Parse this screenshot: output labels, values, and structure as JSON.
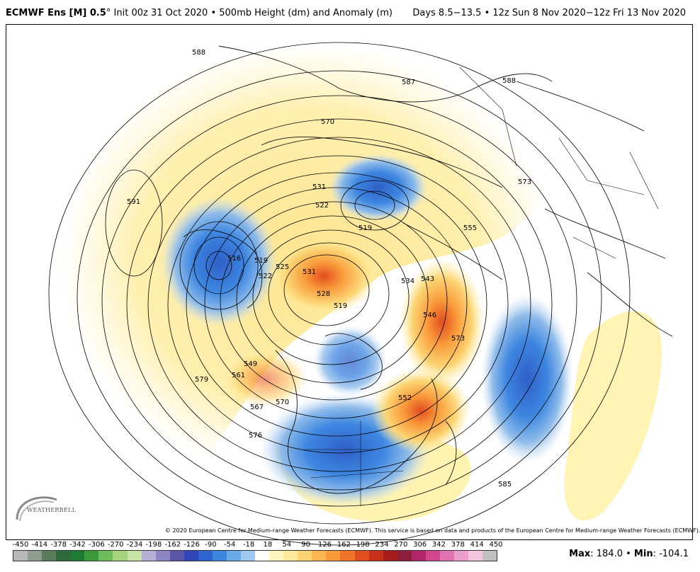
{
  "header": {
    "model": "ECMWF Ens [M] 0.5",
    "degree": "°",
    "init": "Init 00z 31 Oct 2020",
    "bullet": "•",
    "field": "500mb Height (dm) and Anomaly (m)",
    "period": "Days 8.5−13.5 • 12z Sun 8 Nov 2020−12z Fri 13 Nov 2020"
  },
  "footer": {
    "copyright": "© 2020 European Centre for Medium-range Weather Forecasts (ECMWF). This service is based on data and products of the European Centre for Medium-range Weather Forecasts (ECMWF).",
    "max_label": "Max",
    "max_value": ": 184.0",
    "sep": " • ",
    "min_label": "Min",
    "min_value": ": -104.1",
    "logo_text": "WEATHERBELL"
  },
  "colorbar": {
    "labels": [
      "-450",
      "-414",
      "-378",
      "-342",
      "-306",
      "-270",
      "-234",
      "-198",
      "-162",
      "-126",
      "-90",
      "-54",
      "-18",
      "18",
      "54",
      "90",
      "126",
      "162",
      "198",
      "234",
      "270",
      "306",
      "342",
      "378",
      "414",
      "450"
    ],
    "colors": [
      "#b8b8b8",
      "#8e9e8e",
      "#5c7a5c",
      "#2f6b3a",
      "#1f7a33",
      "#3a9a3a",
      "#6dbb5a",
      "#a5d47d",
      "#c8e3a5",
      "#b7b0d6",
      "#8d86c2",
      "#5b55a8",
      "#2f45b8",
      "#2f63d1",
      "#3d86e0",
      "#6aaae8",
      "#9fc8f0",
      "#ffffff",
      "#fff7c2",
      "#ffe99a",
      "#fcd473",
      "#fbb652",
      "#f99a3b",
      "#f2742a",
      "#e24d1f",
      "#c9301a",
      "#a61d1d",
      "#8d1d3d",
      "#b3256b",
      "#d0478f",
      "#df74b0",
      "#ea9fcb",
      "#f2c6df",
      "#c0c0c0"
    ]
  },
  "contour_labels": [
    "588",
    "591",
    "587",
    "570",
    "531",
    "522",
    "516",
    "519",
    "522",
    "525",
    "531",
    "528",
    "519",
    "534",
    "543",
    "546",
    "549",
    "561",
    "567",
    "570",
    "579",
    "576",
    "555",
    "552",
    "573",
    "585",
    "588",
    "573",
    "519"
  ],
  "colors": {
    "negative_strong": "#2f63d1",
    "negative_light": "#9fc8f0",
    "positive_light": "#fff2a8",
    "positive_mid": "#fbb652",
    "positive_strong": "#e24d1f"
  }
}
